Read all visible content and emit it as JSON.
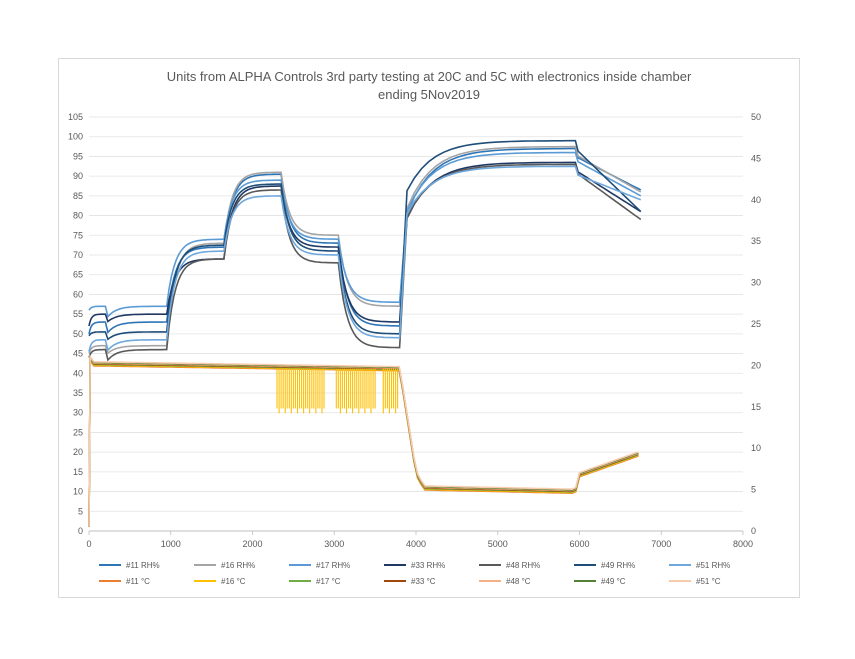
{
  "chart_data": {
    "type": "line",
    "title_lines": [
      "Units from ALPHA Controls 3rd party testing at 20C and 5C with electronics inside chamber",
      "ending 5Nov2019"
    ],
    "xlim": [
      0,
      8000
    ],
    "x_ticks": [
      0,
      1000,
      2000,
      3000,
      4000,
      5000,
      6000,
      7000,
      8000
    ],
    "ylim_left": [
      0,
      105
    ],
    "y_ticks_left": [
      0,
      5,
      10,
      15,
      20,
      25,
      30,
      35,
      40,
      45,
      50,
      55,
      60,
      65,
      70,
      75,
      80,
      85,
      90,
      95,
      100,
      105
    ],
    "ylim_right": [
      0,
      50
    ],
    "y_ticks_right": [
      0,
      5,
      10,
      15,
      20,
      25,
      30,
      35,
      40,
      45,
      50
    ],
    "grid": true,
    "legend_position": "bottom",
    "rh_series": [
      {
        "name": "#11 RH%",
        "color": "#2e75b6",
        "axis": "left",
        "levels": [
          53,
          72,
          90.5,
          73,
          52,
          97,
          86.5
        ]
      },
      {
        "name": "#16 RH%",
        "color": "#a5a5a5",
        "axis": "left",
        "levels": [
          47,
          73,
          91,
          75,
          57,
          97.5,
          86
        ]
      },
      {
        "name": "#17 RH%",
        "color": "#5b9bd5",
        "axis": "left",
        "levels": [
          57,
          74,
          89,
          74,
          58,
          96,
          85
        ]
      },
      {
        "name": "#33 RH%",
        "color": "#203864",
        "axis": "left",
        "levels": [
          55,
          69,
          87.5,
          72,
          53,
          93.5,
          81
        ]
      },
      {
        "name": "#48 RH%",
        "color": "#595959",
        "axis": "left",
        "levels": [
          46,
          69,
          86.5,
          68,
          46.5,
          93,
          79
        ]
      },
      {
        "name": "#49 RH%",
        "color": "#1f4e79",
        "axis": "left",
        "levels": [
          50.5,
          72.5,
          88,
          71,
          50,
          99,
          81
        ]
      },
      {
        "name": "#51 RH%",
        "color": "#6fa8dc",
        "axis": "left",
        "levels": [
          48.5,
          71,
          85,
          70,
          49,
          92.5,
          84
        ]
      }
    ],
    "temp_series": [
      {
        "name": "#11 °C",
        "color": "#ed7d31",
        "axis": "right"
      },
      {
        "name": "#16 °C",
        "color": "#ffc000",
        "axis": "right"
      },
      {
        "name": "#17 °C",
        "color": "#70ad47",
        "axis": "right"
      },
      {
        "name": "#33 °C",
        "color": "#9e480e",
        "axis": "right"
      },
      {
        "name": "#48 °C",
        "color": "#f4b183",
        "axis": "right"
      },
      {
        "name": "#49 °C",
        "color": "#548235",
        "axis": "right"
      },
      {
        "name": "#51 °C",
        "color": "#f8cbad",
        "axis": "right"
      }
    ],
    "temperature_profile": [
      [
        0,
        20.2
      ],
      [
        3800,
        19.6
      ],
      [
        4000,
        7
      ],
      [
        4100,
        5.2
      ],
      [
        5950,
        4.8
      ],
      [
        6000,
        6.8
      ],
      [
        6750,
        9.4
      ]
    ],
    "rh_step_times": [
      0,
      200,
      950,
      1650,
      2350,
      3050,
      3800,
      5950,
      6750
    ]
  }
}
